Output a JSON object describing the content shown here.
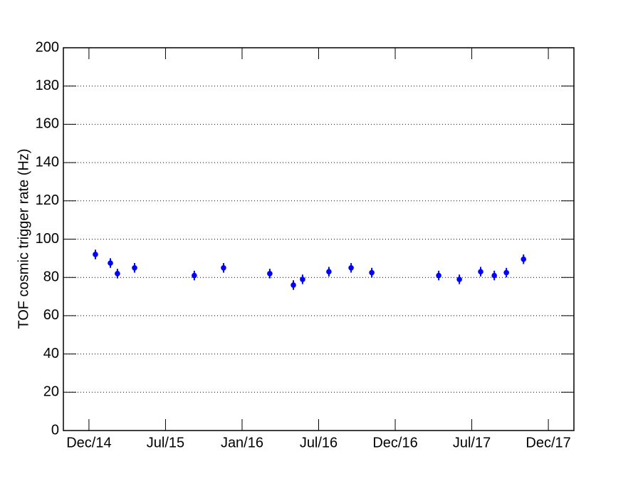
{
  "chart_data": {
    "type": "scatter",
    "ylabel": "TOF cosmic trigger rate (Hz)",
    "x": [
      2014.992,
      2015.09,
      2015.136,
      2015.248,
      2015.638,
      2015.829,
      2016.131,
      2016.285,
      2016.345,
      2016.517,
      2016.662,
      2016.797,
      2017.234,
      2017.369,
      2017.508,
      2017.597,
      2017.676,
      2017.788
    ],
    "series": [
      {
        "color": "#0000ff",
        "values": [
          92,
          87.5,
          82,
          85,
          81,
          85,
          82,
          76,
          79,
          83,
          85,
          82.5,
          81,
          79,
          83,
          81,
          82.5,
          89.5
        ],
        "errors": [
          2.5,
          2.5,
          2.5,
          2.5,
          2.5,
          2.5,
          2.5,
          2.5,
          2.5,
          2.5,
          2.5,
          2.5,
          2.5,
          2.5,
          2.5,
          2.5,
          2.5,
          2.5
        ]
      }
    ],
    "xlim": [
      2014.783,
      2018.117
    ],
    "xticks": [
      {
        "value": 2014.95,
        "label": "Dec/14"
      },
      {
        "value": 2015.45,
        "label": "Jul/15"
      },
      {
        "value": 2015.95,
        "label": "Jan/16"
      },
      {
        "value": 2016.45,
        "label": "Jul/16"
      },
      {
        "value": 2016.95,
        "label": "Dec/16"
      },
      {
        "value": 2017.45,
        "label": "Jul/17"
      },
      {
        "value": 2017.95,
        "label": "Dec/17"
      }
    ],
    "ylim": [
      0,
      200
    ],
    "yticks": [
      0,
      20,
      40,
      60,
      80,
      100,
      120,
      140,
      160,
      180,
      200
    ],
    "grid": true
  }
}
